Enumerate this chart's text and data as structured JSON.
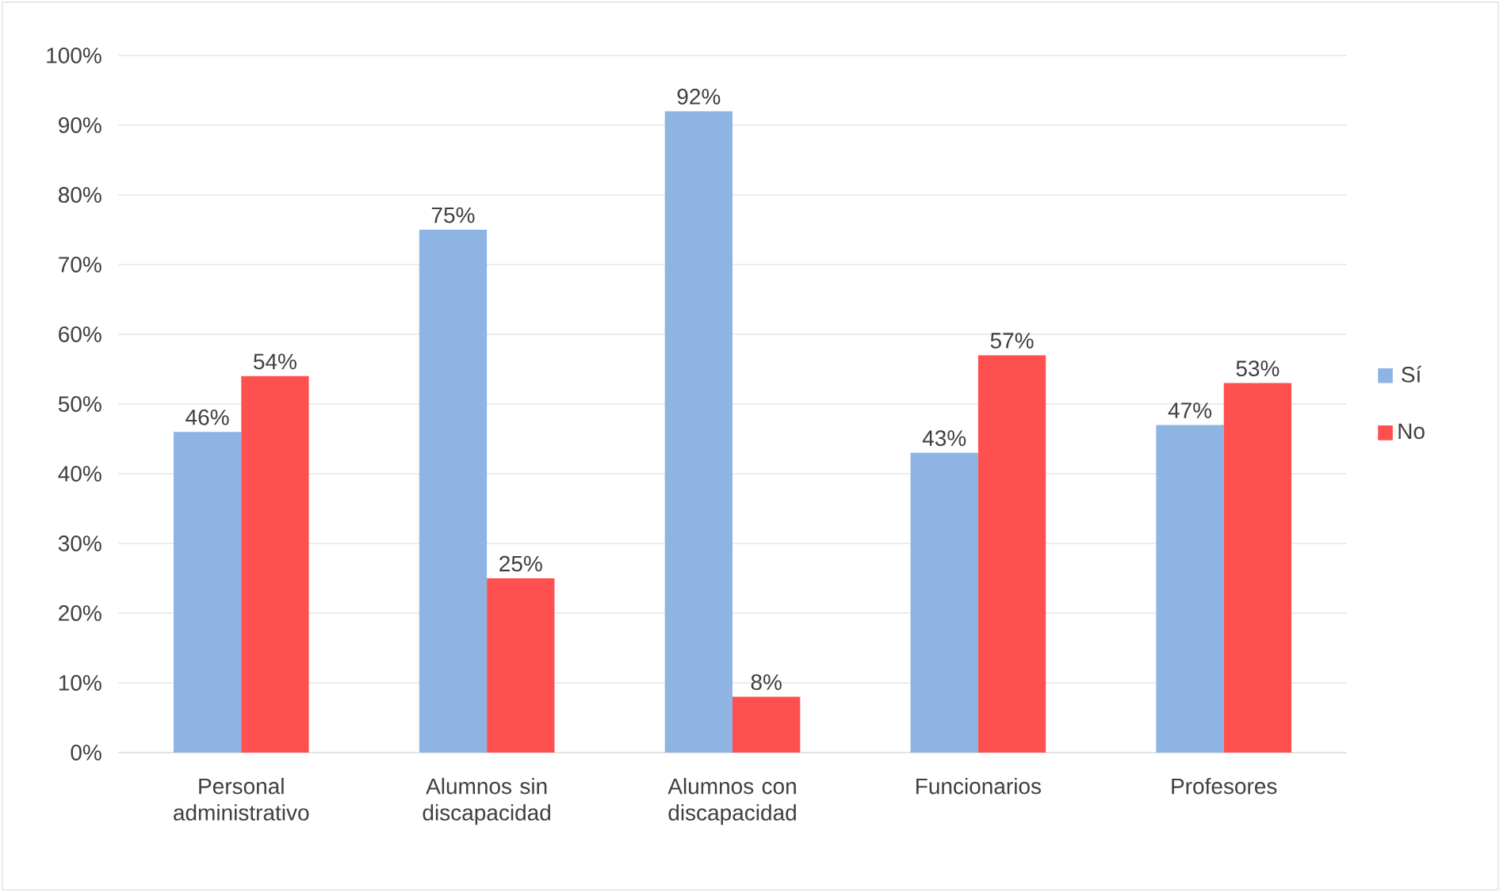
{
  "chart_data": {
    "type": "bar",
    "categories": [
      "Personal administrativo",
      "Alumnos sin discapacidad",
      "Alumnos con discapacidad",
      "Funcionarios",
      "Profesores"
    ],
    "series": [
      {
        "name": "Sí",
        "color": "#8eb4e3",
        "values": [
          46,
          75,
          92,
          43,
          47
        ],
        "value_labels": [
          "46%",
          "75%",
          "92%",
          "43%",
          "47%"
        ]
      },
      {
        "name": "No",
        "color": "#ff5050",
        "values": [
          54,
          25,
          8,
          57,
          53
        ],
        "value_labels": [
          "54%",
          "25%",
          "8%",
          "57%",
          "53%"
        ]
      }
    ],
    "ylim": [
      0,
      100
    ],
    "yticks": [
      {
        "value": 0,
        "label": "0%"
      },
      {
        "value": 10,
        "label": "10%"
      },
      {
        "value": 20,
        "label": "20%"
      },
      {
        "value": 30,
        "label": "30%"
      },
      {
        "value": 40,
        "label": "40%"
      },
      {
        "value": 50,
        "label": "50%"
      },
      {
        "value": 60,
        "label": "60%"
      },
      {
        "value": 70,
        "label": "70%"
      },
      {
        "value": 80,
        "label": "80%"
      },
      {
        "value": 90,
        "label": "90%"
      },
      {
        "value": 100,
        "label": "100%"
      }
    ],
    "grid": "y",
    "legend": "right"
  }
}
